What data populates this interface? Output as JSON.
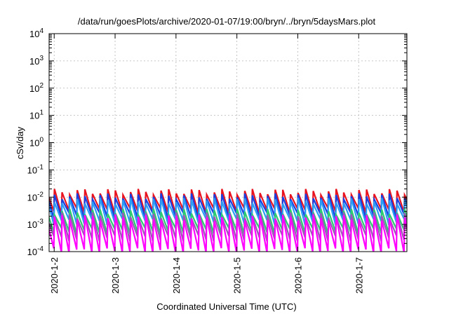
{
  "chart_data": {
    "type": "line",
    "title": "/data/run/goesPlots/archive/2020-01-07/19:00/bryn/../bryn/5daysMars.plot",
    "xlabel": "Coordinated Universal Time (UTC)",
    "ylabel": "cSv/day",
    "yscale": "log",
    "ylim": [
      0.0001,
      10000
    ],
    "xlim": [
      "2020-01-01T22:00",
      "2020-01-07T19:00"
    ],
    "grid": true,
    "legend": "none",
    "x_ticks": [
      "2020-1-2",
      "2020-1-3",
      "2020-1-4",
      "2020-1-5",
      "2020-1-6",
      "2020-1-7"
    ],
    "y_ticks": [
      {
        "value": 0.0001,
        "base": "10",
        "exp": "-4"
      },
      {
        "value": 0.001,
        "base": "10",
        "exp": "-3"
      },
      {
        "value": 0.01,
        "base": "10",
        "exp": "-2"
      },
      {
        "value": 0.1,
        "base": "10",
        "exp": "-1"
      },
      {
        "value": 1,
        "base": "10",
        "exp": "0"
      },
      {
        "value": 10,
        "base": "10",
        "exp": "1"
      },
      {
        "value": 100,
        "base": "10",
        "exp": "2"
      },
      {
        "value": 1000,
        "base": "10",
        "exp": "3"
      },
      {
        "value": 10000,
        "base": "10",
        "exp": "4"
      }
    ],
    "sawtooth_period_hours": 3,
    "series": [
      {
        "color": "#e8131f",
        "peak": 0.016,
        "trough": 0.003
      },
      {
        "color": "#1a3fe0",
        "peak": 0.011,
        "trough": 0.002
      },
      {
        "color": "#2a9df4",
        "peak": 0.0075,
        "trough": 0.0012
      },
      {
        "color": "#2ecc71",
        "peak": 0.003,
        "trough": 0.00055
      },
      {
        "color": "#9b59b6",
        "peak": 0.0022,
        "trough": 0.0003
      },
      {
        "color": "#ff00ff",
        "peak": 0.0018,
        "trough": 0.0001
      }
    ]
  }
}
